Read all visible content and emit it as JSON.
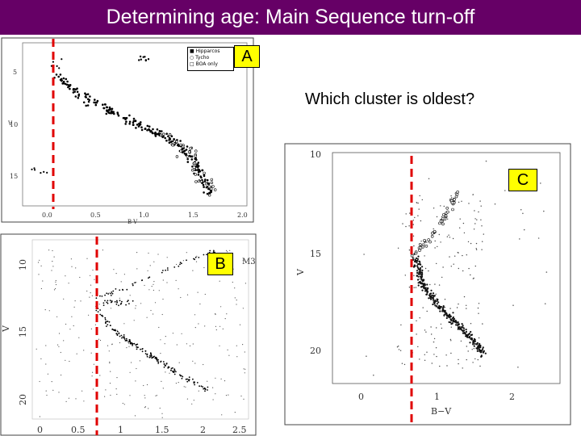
{
  "title": "Determining age: Main Sequence turn-off",
  "question": "Which cluster is oldest?",
  "colors": {
    "title_bg": "#660066",
    "title_fg": "#ffffff",
    "label_bg": "#ffff00",
    "turnoff_line": "#e00000"
  },
  "panels": {
    "a": {
      "label": "A",
      "legend": [
        "Hipparcos",
        "Tycho",
        "BOA only"
      ],
      "x_ticks": [
        "0.0",
        "0.5",
        "1.0",
        "1.5",
        "2.0"
      ],
      "y_ticks": [
        "5",
        "10",
        "15"
      ],
      "xlabel": "B-V",
      "ylabel": "V"
    },
    "b": {
      "label": "B",
      "x_ticks": [
        "0",
        "0.5",
        "1",
        "1.5",
        "2",
        "2.5"
      ],
      "y_ticks": [
        "10",
        "15",
        "20"
      ],
      "ylabel": "V",
      "corner_text": "M3"
    },
    "c": {
      "label": "C",
      "x_ticks": [
        "0",
        "1",
        "2"
      ],
      "y_ticks": [
        "10",
        "15",
        "20"
      ],
      "xlabel": "B−V",
      "ylabel": "V"
    }
  }
}
